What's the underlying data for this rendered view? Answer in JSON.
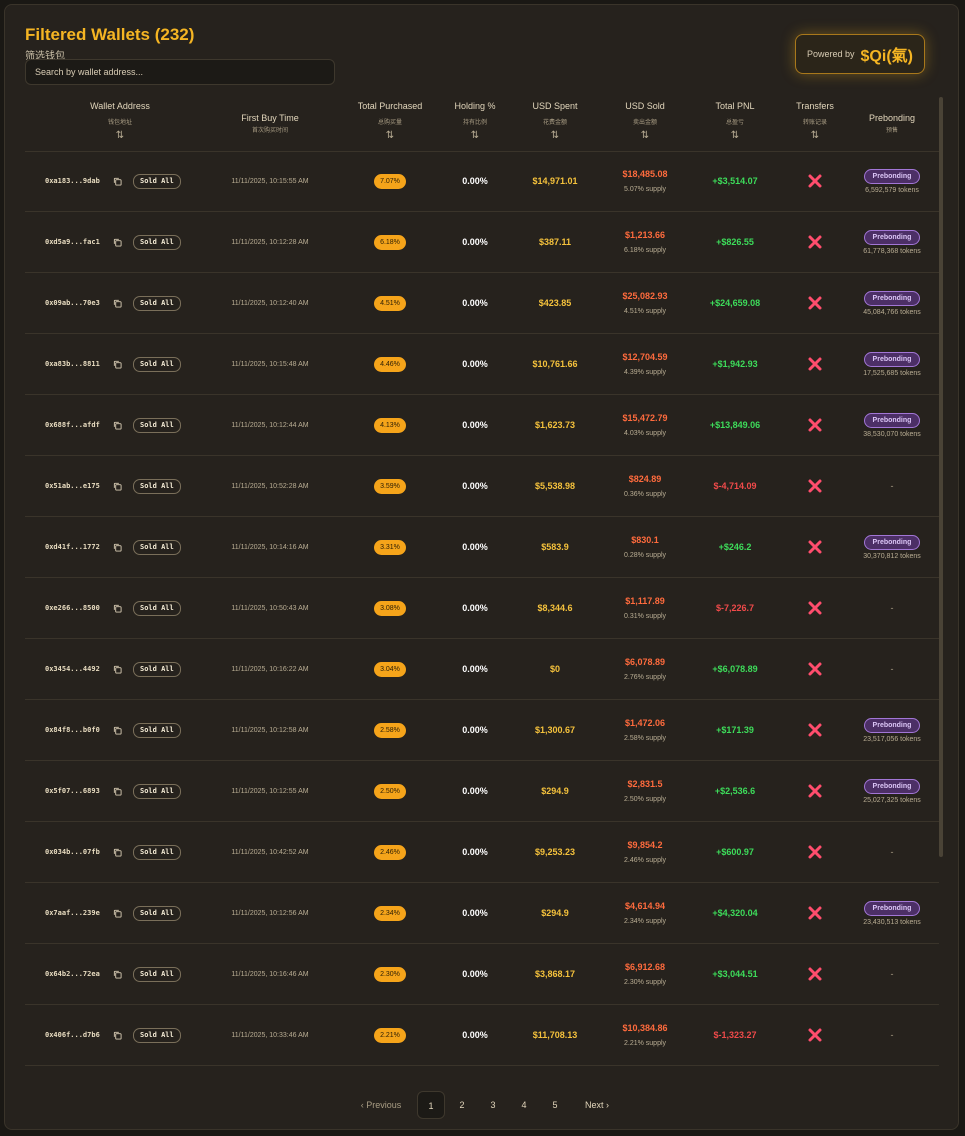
{
  "header": {
    "title": "Filtered Wallets (232)",
    "subtitle": "筛选钱包",
    "search_placeholder": "Search by wallet address..."
  },
  "powered": {
    "label": "Powered by",
    "brand": "$Qi(氣)"
  },
  "columns": [
    {
      "title": "Wallet Address",
      "sub": "钱包地址",
      "sort": "⇅"
    },
    {
      "title": "First Buy Time",
      "sub": "首次购买时间",
      "sort": ""
    },
    {
      "title": "Total Purchased",
      "sub": "总购买量",
      "sort": "⇅"
    },
    {
      "title": "Holding %",
      "sub": "持有比例",
      "sort": "⇅"
    },
    {
      "title": "USD Spent",
      "sub": "花费金额",
      "sort": "⇅"
    },
    {
      "title": "USD Sold",
      "sub": "卖出金额",
      "sort": "⇅"
    },
    {
      "title": "Total PNL",
      "sub": "总盈亏",
      "sort": "⇅"
    },
    {
      "title": "Transfers",
      "sub": "转账记录",
      "sort": "⇅"
    },
    {
      "title": "Prebonding",
      "sub": "预售",
      "sort": ""
    }
  ],
  "sold_label": "Sold All",
  "prebond_label": "Prebonding",
  "rows": [
    {
      "addr": "0xa183...9dab",
      "time": "11/11/2025, 10:15:55 AM",
      "pct": "7.07%",
      "hold": "0.00%",
      "spent": "$14,971.01",
      "sold": "$18,485.08",
      "supply": "5.07% supply",
      "pnl": "+$3,514.07",
      "pnl_sign": "pos",
      "pre": "6,592,579 tokens"
    },
    {
      "addr": "0xd5a9...fac1",
      "time": "11/11/2025, 10:12:28 AM",
      "pct": "6.18%",
      "hold": "0.00%",
      "spent": "$387.11",
      "sold": "$1,213.66",
      "supply": "6.18% supply",
      "pnl": "+$826.55",
      "pnl_sign": "pos",
      "pre": "61,778,368 tokens"
    },
    {
      "addr": "0x09ab...70e3",
      "time": "11/11/2025, 10:12:40 AM",
      "pct": "4.51%",
      "hold": "0.00%",
      "spent": "$423.85",
      "sold": "$25,082.93",
      "supply": "4.51% supply",
      "pnl": "+$24,659.08",
      "pnl_sign": "pos",
      "pre": "45,084,766 tokens"
    },
    {
      "addr": "0xa83b...8811",
      "time": "11/11/2025, 10:15:48 AM",
      "pct": "4.46%",
      "hold": "0.00%",
      "spent": "$10,761.66",
      "sold": "$12,704.59",
      "supply": "4.39% supply",
      "pnl": "+$1,942.93",
      "pnl_sign": "pos",
      "pre": "17,525,685 tokens"
    },
    {
      "addr": "0x688f...afdf",
      "time": "11/11/2025, 10:12:44 AM",
      "pct": "4.13%",
      "hold": "0.00%",
      "spent": "$1,623.73",
      "sold": "$15,472.79",
      "supply": "4.03% supply",
      "pnl": "+$13,849.06",
      "pnl_sign": "pos",
      "pre": "38,530,070 tokens"
    },
    {
      "addr": "0x51ab...e175",
      "time": "11/11/2025, 10:52:28 AM",
      "pct": "3.59%",
      "hold": "0.00%",
      "spent": "$5,538.98",
      "sold": "$824.89",
      "supply": "0.36% supply",
      "pnl": "$-4,714.09",
      "pnl_sign": "neg",
      "pre": ""
    },
    {
      "addr": "0xd41f...1772",
      "time": "11/11/2025, 10:14:16 AM",
      "pct": "3.31%",
      "hold": "0.00%",
      "spent": "$583.9",
      "sold": "$830.1",
      "supply": "0.28% supply",
      "pnl": "+$246.2",
      "pnl_sign": "pos",
      "pre": "30,370,812 tokens"
    },
    {
      "addr": "0xe266...8500",
      "time": "11/11/2025, 10:50:43 AM",
      "pct": "3.08%",
      "hold": "0.00%",
      "spent": "$8,344.6",
      "sold": "$1,117.89",
      "supply": "0.31% supply",
      "pnl": "$-7,226.7",
      "pnl_sign": "neg",
      "pre": ""
    },
    {
      "addr": "0x3454...4492",
      "time": "11/11/2025, 10:16:22 AM",
      "pct": "3.04%",
      "hold": "0.00%",
      "spent": "$0",
      "sold": "$6,078.89",
      "supply": "2.76% supply",
      "pnl": "+$6,078.89",
      "pnl_sign": "pos",
      "pre": ""
    },
    {
      "addr": "0x84f8...b0f0",
      "time": "11/11/2025, 10:12:58 AM",
      "pct": "2.58%",
      "hold": "0.00%",
      "spent": "$1,300.67",
      "sold": "$1,472.06",
      "supply": "2.58% supply",
      "pnl": "+$171.39",
      "pnl_sign": "pos",
      "pre": "23,517,056 tokens"
    },
    {
      "addr": "0x5f07...6893",
      "time": "11/11/2025, 10:12:55 AM",
      "pct": "2.50%",
      "hold": "0.00%",
      "spent": "$294.9",
      "sold": "$2,831.5",
      "supply": "2.50% supply",
      "pnl": "+$2,536.6",
      "pnl_sign": "pos",
      "pre": "25,027,325 tokens"
    },
    {
      "addr": "0x034b...07fb",
      "time": "11/11/2025, 10:42:52 AM",
      "pct": "2.46%",
      "hold": "0.00%",
      "spent": "$9,253.23",
      "sold": "$9,854.2",
      "supply": "2.46% supply",
      "pnl": "+$600.97",
      "pnl_sign": "pos",
      "pre": ""
    },
    {
      "addr": "0x7aaf...239e",
      "time": "11/11/2025, 10:12:56 AM",
      "pct": "2.34%",
      "hold": "0.00%",
      "spent": "$294.9",
      "sold": "$4,614.94",
      "supply": "2.34% supply",
      "pnl": "+$4,320.04",
      "pnl_sign": "pos",
      "pre": "23,430,513 tokens"
    },
    {
      "addr": "0x64b2...72ea",
      "time": "11/11/2025, 10:16:46 AM",
      "pct": "2.30%",
      "hold": "0.00%",
      "spent": "$3,868.17",
      "sold": "$6,912.68",
      "supply": "2.30% supply",
      "pnl": "+$3,044.51",
      "pnl_sign": "pos",
      "pre": ""
    },
    {
      "addr": "0x406f...d7b6",
      "time": "11/11/2025, 10:33:46 AM",
      "pct": "2.21%",
      "hold": "0.00%",
      "spent": "$11,708.13",
      "sold": "$10,384.86",
      "supply": "2.21% supply",
      "pnl": "$-1,323.27",
      "pnl_sign": "neg",
      "pre": ""
    }
  ],
  "pagination": {
    "prev": "Previous",
    "next": "Next",
    "pages": [
      "1",
      "2",
      "3",
      "4",
      "5"
    ],
    "active": "1"
  },
  "colors": {
    "accent": "#f5b523",
    "positive": "#3ddc5a",
    "negative": "#f04a4a",
    "sold": "#ff6b3d",
    "transfer_x": "#ff4d6d",
    "prebond": "#a276d6"
  },
  "icons": {
    "copy": "copy-icon",
    "transfer": "x-icon",
    "prev": "chevron-left-icon",
    "next": "chevron-right-icon",
    "sort": "sort-icon"
  }
}
